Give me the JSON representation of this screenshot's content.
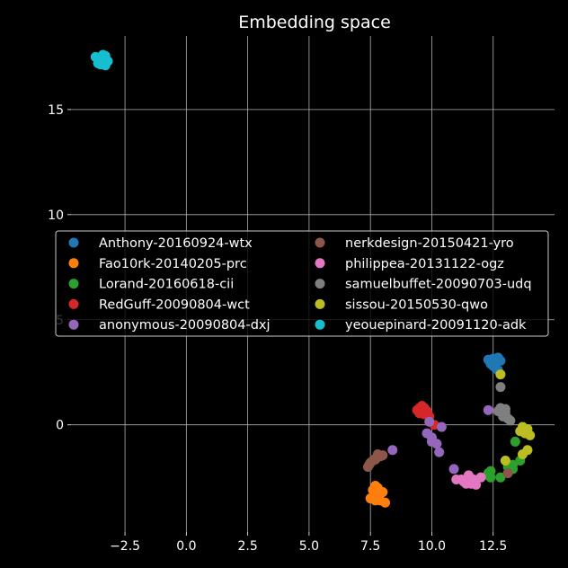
{
  "chart_data": {
    "type": "scatter",
    "title": "Embedding space",
    "xlabel": "",
    "ylabel": "",
    "xlim": [
      -4.7,
      15.0
    ],
    "ylim": [
      -5.1,
      18.5
    ],
    "xticks": [
      -2.5,
      0.0,
      2.5,
      5.0,
      7.5,
      10.0,
      12.5
    ],
    "xtick_labels": [
      "−2.5",
      "0.0",
      "2.5",
      "5.0",
      "7.5",
      "10.0",
      "12.5"
    ],
    "yticks": [
      0,
      5,
      10,
      15
    ],
    "ytick_labels": [
      "0",
      "5",
      "10",
      "15"
    ],
    "grid": true,
    "legend_placement": "center-right",
    "legend_columns": 2,
    "series": [
      {
        "name": "Anthony-20160924-wtx",
        "color": "#1f77b4",
        "points": [
          [
            12.3,
            3.1
          ],
          [
            12.5,
            3.15
          ],
          [
            12.7,
            3.2
          ],
          [
            12.6,
            3.0
          ],
          [
            12.4,
            2.9
          ],
          [
            12.8,
            3.05
          ],
          [
            12.5,
            2.8
          ],
          [
            12.7,
            2.6
          ],
          [
            12.6,
            2.7
          ],
          [
            12.4,
            3.0
          ]
        ]
      },
      {
        "name": "Fao10rk-20140205-prc",
        "color": "#ff7f0e",
        "points": [
          [
            7.5,
            -3.5
          ],
          [
            7.6,
            -3.1
          ],
          [
            7.7,
            -2.9
          ],
          [
            7.8,
            -3.3
          ],
          [
            7.9,
            -3.6
          ],
          [
            8.0,
            -3.2
          ],
          [
            8.1,
            -3.7
          ],
          [
            7.6,
            -3.4
          ],
          [
            7.8,
            -3.0
          ],
          [
            7.7,
            -3.6
          ]
        ]
      },
      {
        "name": "Lorand-20160618-cii",
        "color": "#2ca02c",
        "points": [
          [
            12.3,
            -2.4
          ],
          [
            12.4,
            -2.5
          ],
          [
            12.8,
            -2.5
          ],
          [
            12.3,
            -2.3
          ],
          [
            13.3,
            -2.1
          ],
          [
            13.4,
            -0.8
          ],
          [
            13.6,
            -1.7
          ],
          [
            13.1,
            -2.0
          ],
          [
            12.4,
            -2.2
          ],
          [
            13.3,
            -1.9
          ]
        ]
      },
      {
        "name": "RedGuff-20090804-wct",
        "color": "#d62728",
        "points": [
          [
            9.4,
            0.7
          ],
          [
            9.5,
            0.8
          ],
          [
            9.6,
            0.6
          ],
          [
            9.7,
            0.8
          ],
          [
            9.8,
            0.65
          ],
          [
            9.5,
            0.55
          ],
          [
            9.7,
            0.5
          ],
          [
            9.6,
            0.9
          ],
          [
            10.1,
            0.0
          ],
          [
            9.9,
            0.4
          ]
        ]
      },
      {
        "name": "anonymous-20090804-dxj",
        "color": "#9467bd",
        "points": [
          [
            8.4,
            -1.2
          ],
          [
            9.8,
            -0.4
          ],
          [
            10.0,
            -0.8
          ],
          [
            10.2,
            -0.9
          ],
          [
            10.3,
            -1.3
          ],
          [
            10.4,
            -0.1
          ],
          [
            10.0,
            -0.6
          ],
          [
            9.9,
            0.15
          ],
          [
            10.9,
            -2.1
          ],
          [
            12.3,
            0.7
          ]
        ]
      },
      {
        "name": "nerkdesign-20150421-yro",
        "color": "#8c564b",
        "points": [
          [
            7.4,
            -2.0
          ],
          [
            7.5,
            -1.8
          ],
          [
            7.6,
            -1.7
          ],
          [
            7.7,
            -1.6
          ],
          [
            7.8,
            -1.4
          ],
          [
            7.9,
            -1.5
          ],
          [
            8.0,
            -1.45
          ],
          [
            7.45,
            -1.9
          ],
          [
            13.1,
            -2.3
          ],
          [
            7.7,
            -1.65
          ]
        ]
      },
      {
        "name": "philippea-20131122-ogz",
        "color": "#e377c2",
        "points": [
          [
            11.0,
            -2.6
          ],
          [
            11.2,
            -2.6
          ],
          [
            11.3,
            -2.7
          ],
          [
            11.4,
            -2.8
          ],
          [
            11.5,
            -2.5
          ],
          [
            11.6,
            -2.8
          ],
          [
            11.7,
            -2.6
          ],
          [
            11.8,
            -2.85
          ],
          [
            12.0,
            -2.5
          ],
          [
            11.5,
            -2.4
          ]
        ]
      },
      {
        "name": "samuelbuffet-20090703-udq",
        "color": "#7f7f7f",
        "points": [
          [
            12.8,
            1.8
          ],
          [
            12.8,
            0.8
          ],
          [
            12.9,
            0.4
          ],
          [
            13.0,
            0.6
          ],
          [
            13.1,
            0.3
          ],
          [
            13.2,
            0.2
          ],
          [
            12.7,
            0.65
          ],
          [
            13.0,
            0.75
          ],
          [
            12.9,
            0.5
          ],
          [
            13.0,
            0.45
          ]
        ]
      },
      {
        "name": "sissou-20150530-qwo",
        "color": "#bcbd22",
        "points": [
          [
            12.8,
            2.4
          ],
          [
            13.6,
            -0.3
          ],
          [
            13.8,
            -0.4
          ],
          [
            13.9,
            -0.2
          ],
          [
            14.0,
            -0.5
          ],
          [
            13.9,
            -1.2
          ],
          [
            13.7,
            -1.4
          ],
          [
            13.8,
            -0.3
          ],
          [
            13.0,
            -1.7
          ],
          [
            13.7,
            -0.1
          ]
        ]
      },
      {
        "name": "yeouepinard-20091120-adk",
        "color": "#17becf",
        "points": [
          [
            -3.7,
            17.5
          ],
          [
            -3.6,
            17.2
          ],
          [
            -3.5,
            17.4
          ],
          [
            -3.4,
            17.6
          ],
          [
            -3.3,
            17.1
          ],
          [
            -3.2,
            17.3
          ],
          [
            -3.5,
            17.15
          ],
          [
            -3.4,
            17.5
          ],
          [
            -3.6,
            17.4
          ],
          [
            -3.3,
            17.55
          ]
        ]
      }
    ]
  }
}
